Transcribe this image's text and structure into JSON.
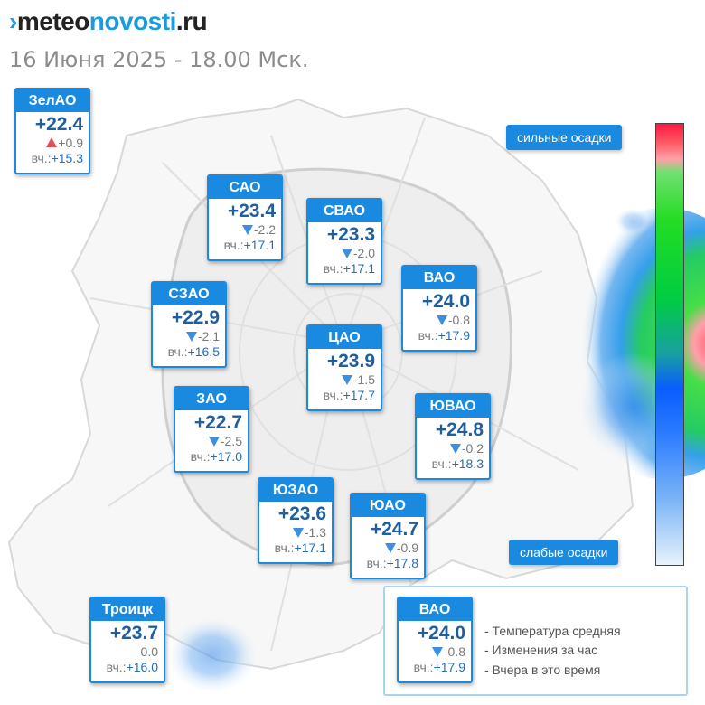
{
  "header": {
    "logo_mark": "›",
    "logo_part1": "meteo",
    "logo_part2": "novosti",
    "logo_part3": ".ru",
    "subtitle": "16 Июня 2025 - 18.00 Мск."
  },
  "districts": [
    {
      "id": "zelao",
      "name": "ЗелАО",
      "temp": "+22.4",
      "trend": "up",
      "change": "+0.9",
      "yest_label": "вч.:",
      "yest": "+15.3"
    },
    {
      "id": "sao",
      "name": "САО",
      "temp": "+23.4",
      "trend": "down",
      "change": "-2.2",
      "yest_label": "вч.:",
      "yest": "+17.1"
    },
    {
      "id": "svao",
      "name": "СВАО",
      "temp": "+23.3",
      "trend": "down",
      "change": "-2.0",
      "yest_label": "вч.:",
      "yest": "+17.1"
    },
    {
      "id": "vao",
      "name": "ВАО",
      "temp": "+24.0",
      "trend": "down",
      "change": "-0.8",
      "yest_label": "вч.:",
      "yest": "+17.9"
    },
    {
      "id": "szao",
      "name": "СЗАО",
      "temp": "+22.9",
      "trend": "down",
      "change": "-2.1",
      "yest_label": "вч.:",
      "yest": "+16.5"
    },
    {
      "id": "cao",
      "name": "ЦАО",
      "temp": "+23.9",
      "trend": "down",
      "change": "-1.5",
      "yest_label": "вч.:",
      "yest": "+17.7"
    },
    {
      "id": "zao",
      "name": "ЗАО",
      "temp": "+22.7",
      "trend": "down",
      "change": "-2.5",
      "yest_label": "вч.:",
      "yest": "+17.0"
    },
    {
      "id": "yuvao",
      "name": "ЮВАО",
      "temp": "+24.8",
      "trend": "down",
      "change": "-0.2",
      "yest_label": "вч.:",
      "yest": "+18.3"
    },
    {
      "id": "yuzao",
      "name": "ЮЗАО",
      "temp": "+23.6",
      "trend": "down",
      "change": "-1.3",
      "yest_label": "вч.:",
      "yest": "+17.1"
    },
    {
      "id": "yuao",
      "name": "ЮАО",
      "temp": "+24.7",
      "trend": "down",
      "change": "-0.9",
      "yest_label": "вч.:",
      "yest": "+17.8"
    },
    {
      "id": "troitsk",
      "name": "Троицк",
      "temp": "+23.7",
      "trend": "none",
      "change": "0.0",
      "yest_label": "вч.:",
      "yest": "+16.0"
    }
  ],
  "scale": {
    "top_label": "сильные осадки",
    "bottom_label": "слабые осадки",
    "colors": [
      "#ff1744",
      "#22dd22",
      "#0a5cff",
      "#e8f2fc"
    ]
  },
  "legend": {
    "sample": {
      "name": "ВАО",
      "temp": "+24.0",
      "trend": "down",
      "change": "-0.8",
      "yest_label": "вч.:",
      "yest": "+17.9"
    },
    "lines": [
      "- Температура средняя",
      "- Изменения за час",
      "- Вчера в это время"
    ]
  },
  "colors": {
    "accent": "#1a8ae0",
    "temp_text": "#1f5fa0",
    "trend_down": "#3c8fe0",
    "trend_up": "#e0505a"
  }
}
